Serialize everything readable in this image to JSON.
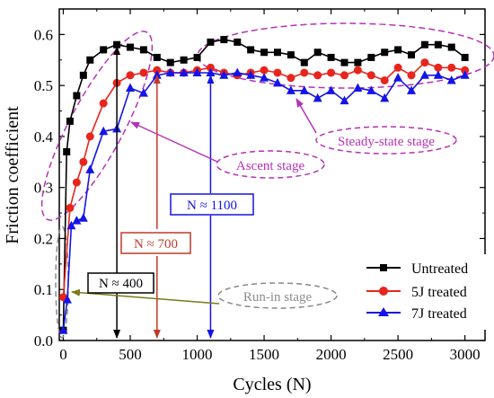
{
  "chart_data": {
    "type": "line",
    "title": "",
    "xlabel": "Cycles (N)",
    "ylabel": "Friction coefficient",
    "xlim": [
      -30,
      3150
    ],
    "ylim": [
      0.0,
      0.65
    ],
    "xticks": [
      0,
      500,
      1000,
      1500,
      2000,
      2500,
      3000
    ],
    "xtick_labels": [
      "0",
      "500",
      "1000",
      "1500",
      "2000",
      "2500",
      "3000"
    ],
    "yticks": [
      0.0,
      0.1,
      0.2,
      0.3,
      0.4,
      0.5,
      0.6
    ],
    "ytick_labels": [
      "0.0",
      "0.1",
      "0.2",
      "0.3",
      "0.4",
      "0.5",
      "0.6"
    ],
    "grid": false,
    "legend_position": "bottom-right",
    "series": [
      {
        "name": "Untreated",
        "color": "#000000",
        "marker": "square",
        "x": [
          0,
          25,
          50,
          100,
          150,
          200,
          300,
          400,
          500,
          600,
          700,
          800,
          900,
          1000,
          1100,
          1200,
          1300,
          1400,
          1500,
          1600,
          1700,
          1800,
          1900,
          2000,
          2100,
          2200,
          2300,
          2400,
          2500,
          2600,
          2700,
          2800,
          2900,
          3000
        ],
        "y": [
          0.02,
          0.37,
          0.43,
          0.48,
          0.52,
          0.55,
          0.57,
          0.58,
          0.575,
          0.57,
          0.555,
          0.545,
          0.55,
          0.555,
          0.585,
          0.59,
          0.585,
          0.57,
          0.565,
          0.565,
          0.56,
          0.545,
          0.565,
          0.555,
          0.545,
          0.545,
          0.555,
          0.565,
          0.57,
          0.56,
          0.58,
          0.58,
          0.575,
          0.555
        ]
      },
      {
        "name": "5J treated",
        "color": "#e8251c",
        "marker": "circle",
        "x": [
          0,
          50,
          100,
          150,
          200,
          300,
          400,
          500,
          600,
          700,
          800,
          900,
          1000,
          1100,
          1200,
          1300,
          1400,
          1500,
          1600,
          1700,
          1800,
          1900,
          2000,
          2100,
          2200,
          2300,
          2400,
          2500,
          2600,
          2700,
          2800,
          2900,
          3000
        ],
        "y": [
          0.085,
          0.26,
          0.31,
          0.35,
          0.4,
          0.465,
          0.505,
          0.52,
          0.525,
          0.53,
          0.525,
          0.525,
          0.53,
          0.535,
          0.525,
          0.52,
          0.525,
          0.53,
          0.525,
          0.515,
          0.525,
          0.52,
          0.525,
          0.52,
          0.53,
          0.52,
          0.51,
          0.535,
          0.52,
          0.545,
          0.535,
          0.535,
          0.53
        ]
      },
      {
        "name": "7J treated",
        "color": "#1414e6",
        "marker": "triangle",
        "x": [
          0,
          30,
          60,
          100,
          150,
          200,
          300,
          400,
          500,
          600,
          700,
          800,
          900,
          1000,
          1100,
          1200,
          1300,
          1400,
          1500,
          1600,
          1700,
          1800,
          1900,
          2000,
          2100,
          2200,
          2300,
          2400,
          2500,
          2600,
          2700,
          2800,
          2900,
          3000
        ],
        "y": [
          0.02,
          0.08,
          0.225,
          0.235,
          0.24,
          0.335,
          0.41,
          0.415,
          0.495,
          0.485,
          0.52,
          0.525,
          0.525,
          0.525,
          0.525,
          0.52,
          0.525,
          0.52,
          0.515,
          0.505,
          0.49,
          0.49,
          0.475,
          0.49,
          0.47,
          0.495,
          0.49,
          0.475,
          0.515,
          0.49,
          0.52,
          0.52,
          0.51,
          0.52
        ]
      }
    ],
    "annotations": [
      {
        "text": "Steady-state stage",
        "color": "#b532b5"
      },
      {
        "text": "Ascent stage",
        "color": "#b532b5"
      },
      {
        "text": "N ≈ 1100",
        "color": "#1414e6"
      },
      {
        "text": "N ≈ 700",
        "color": "#c0392b"
      },
      {
        "text": "N ≈ 400",
        "color": "#000000"
      },
      {
        "text": "Run-in stage",
        "color": "#8c8c8c"
      }
    ]
  }
}
